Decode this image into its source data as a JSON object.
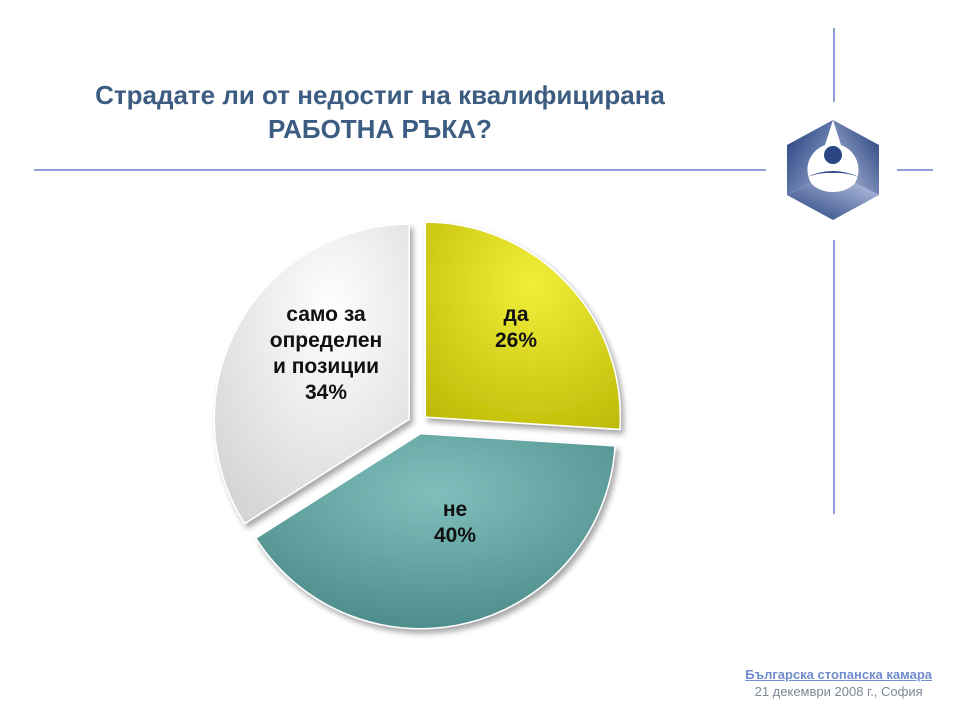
{
  "slide": {
    "title_line1": "Страдате ли от недостиг на квалифицирана",
    "title_line2": "РАБОТНА РЪКА?"
  },
  "footer": {
    "organization": "Българска стопанска камара",
    "date": "21 декември 2008 г., София"
  },
  "logo": {
    "icon": "bsk-hexagon-logo",
    "color": "#2f4a86"
  },
  "chart_data": {
    "type": "pie",
    "title": "",
    "slices": [
      {
        "label": "да",
        "value_label": "26%",
        "value": 26,
        "color": "#d8d400"
      },
      {
        "label": "не",
        "value_label": "40%",
        "value": 40,
        "color": "#5e9e9c"
      },
      {
        "label": "само за определен и позиции",
        "label_lines": [
          "само за",
          "определен",
          "и позиции"
        ],
        "value_label": "34%",
        "value": 34,
        "color": "#ececec"
      }
    ],
    "legend": "none",
    "labels_inside": true
  }
}
